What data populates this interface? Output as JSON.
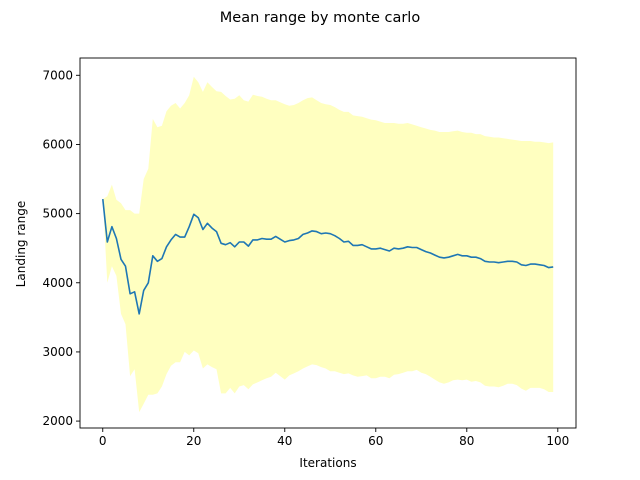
{
  "chart_data": {
    "type": "line",
    "title": "Mean range by monte carlo",
    "xlabel": "Iterations",
    "ylabel": "Landing range",
    "xlim": [
      -5,
      104
    ],
    "ylim": [
      1900,
      7250
    ],
    "xticks": [
      0,
      20,
      40,
      60,
      80,
      100
    ],
    "yticks": [
      2000,
      3000,
      4000,
      5000,
      6000,
      7000
    ],
    "grid": false,
    "colors": {
      "line": "#1f77b4",
      "band": "#ffffc0"
    },
    "series": [
      {
        "kind": "mean",
        "x": [
          0,
          1,
          2,
          3,
          4,
          5,
          6,
          7,
          8,
          9,
          10,
          11,
          12,
          13,
          14,
          15,
          16,
          17,
          18,
          19,
          20,
          21,
          22,
          23,
          24,
          25,
          26,
          27,
          28,
          29,
          30,
          31,
          32,
          33,
          34,
          35,
          36,
          37,
          38,
          39,
          40,
          41,
          42,
          43,
          44,
          45,
          46,
          47,
          48,
          49,
          50,
          51,
          52,
          53,
          54,
          55,
          56,
          57,
          58,
          59,
          60,
          61,
          62,
          63,
          64,
          65,
          66,
          67,
          68,
          69,
          70,
          71,
          72,
          73,
          74,
          75,
          76,
          77,
          78,
          79,
          80,
          81,
          82,
          83,
          84,
          85,
          86,
          87,
          88,
          89,
          90,
          91,
          92,
          93,
          94,
          95,
          96,
          97,
          98,
          99
        ],
        "y": [
          5210,
          4590,
          4810,
          4640,
          4340,
          4240,
          3840,
          3870,
          3550,
          3890,
          4000,
          4390,
          4310,
          4350,
          4520,
          4620,
          4700,
          4660,
          4660,
          4810,
          4990,
          4940,
          4770,
          4860,
          4790,
          4740,
          4570,
          4550,
          4580,
          4520,
          4590,
          4590,
          4530,
          4620,
          4620,
          4640,
          4630,
          4630,
          4670,
          4630,
          4590,
          4610,
          4620,
          4640,
          4700,
          4720,
          4750,
          4740,
          4710,
          4720,
          4710,
          4680,
          4640,
          4590,
          4600,
          4540,
          4540,
          4550,
          4520,
          4490,
          4490,
          4500,
          4480,
          4460,
          4500,
          4490,
          4500,
          4520,
          4510,
          4510,
          4480,
          4450,
          4430,
          4400,
          4370,
          4360,
          4370,
          4390,
          4410,
          4390,
          4390,
          4370,
          4370,
          4350,
          4310,
          4300,
          4300,
          4290,
          4300,
          4310,
          4310,
          4300,
          4260,
          4250,
          4270,
          4270,
          4260,
          4250,
          4220,
          4230
        ]
      },
      {
        "kind": "upper",
        "x": [
          0,
          1,
          2,
          3,
          4,
          5,
          6,
          7,
          8,
          9,
          10,
          11,
          12,
          13,
          14,
          15,
          16,
          17,
          18,
          19,
          20,
          21,
          22,
          23,
          24,
          25,
          26,
          27,
          28,
          29,
          30,
          31,
          32,
          33,
          34,
          35,
          36,
          37,
          38,
          39,
          40,
          41,
          42,
          43,
          44,
          45,
          46,
          47,
          48,
          49,
          50,
          51,
          52,
          53,
          54,
          55,
          56,
          57,
          58,
          59,
          60,
          61,
          62,
          63,
          64,
          65,
          66,
          67,
          68,
          69,
          70,
          71,
          72,
          73,
          74,
          75,
          76,
          77,
          78,
          79,
          80,
          81,
          82,
          83,
          84,
          85,
          86,
          87,
          88,
          89,
          90,
          91,
          92,
          93,
          94,
          95,
          96,
          97,
          98,
          99
        ],
        "y": [
          5210,
          5250,
          5420,
          5200,
          5150,
          5050,
          5050,
          5000,
          5000,
          5500,
          5650,
          6370,
          6250,
          6270,
          6480,
          6560,
          6600,
          6520,
          6600,
          6710,
          6980,
          6900,
          6760,
          6900,
          6830,
          6770,
          6760,
          6700,
          6650,
          6660,
          6710,
          6640,
          6620,
          6720,
          6700,
          6690,
          6660,
          6640,
          6640,
          6610,
          6580,
          6560,
          6570,
          6600,
          6640,
          6670,
          6680,
          6640,
          6600,
          6580,
          6570,
          6540,
          6500,
          6470,
          6470,
          6420,
          6410,
          6400,
          6380,
          6360,
          6350,
          6330,
          6310,
          6310,
          6310,
          6300,
          6300,
          6310,
          6290,
          6270,
          6250,
          6230,
          6210,
          6200,
          6180,
          6180,
          6180,
          6190,
          6200,
          6180,
          6170,
          6170,
          6150,
          6150,
          6120,
          6110,
          6100,
          6100,
          6090,
          6080,
          6070,
          6060,
          6050,
          6050,
          6050,
          6040,
          6040,
          6030,
          6020,
          6030
        ]
      },
      {
        "kind": "lower",
        "x": [
          0,
          1,
          2,
          3,
          4,
          5,
          6,
          7,
          8,
          9,
          10,
          11,
          12,
          13,
          14,
          15,
          16,
          17,
          18,
          19,
          20,
          21,
          22,
          23,
          24,
          25,
          26,
          27,
          28,
          29,
          30,
          31,
          32,
          33,
          34,
          35,
          36,
          37,
          38,
          39,
          40,
          41,
          42,
          43,
          44,
          45,
          46,
          47,
          48,
          49,
          50,
          51,
          52,
          53,
          54,
          55,
          56,
          57,
          58,
          59,
          60,
          61,
          62,
          63,
          64,
          65,
          66,
          67,
          68,
          69,
          70,
          71,
          72,
          73,
          74,
          75,
          76,
          77,
          78,
          79,
          80,
          81,
          82,
          83,
          84,
          85,
          86,
          87,
          88,
          89,
          90,
          91,
          92,
          93,
          94,
          95,
          96,
          97,
          98,
          99
        ],
        "y": [
          5210,
          4000,
          4240,
          4100,
          3550,
          3400,
          2650,
          2750,
          2130,
          2250,
          2380,
          2380,
          2400,
          2500,
          2680,
          2800,
          2850,
          2850,
          3000,
          2950,
          3020,
          2980,
          2760,
          2820,
          2780,
          2750,
          2400,
          2400,
          2480,
          2400,
          2500,
          2520,
          2460,
          2530,
          2560,
          2590,
          2620,
          2640,
          2700,
          2650,
          2600,
          2660,
          2690,
          2720,
          2760,
          2790,
          2820,
          2810,
          2780,
          2760,
          2720,
          2720,
          2700,
          2680,
          2690,
          2660,
          2640,
          2650,
          2660,
          2620,
          2620,
          2640,
          2640,
          2620,
          2670,
          2680,
          2700,
          2720,
          2720,
          2740,
          2700,
          2680,
          2640,
          2600,
          2560,
          2540,
          2560,
          2590,
          2600,
          2590,
          2600,
          2570,
          2580,
          2560,
          2510,
          2500,
          2500,
          2490,
          2510,
          2540,
          2540,
          2520,
          2470,
          2440,
          2480,
          2480,
          2480,
          2460,
          2420,
          2420
        ]
      }
    ]
  }
}
